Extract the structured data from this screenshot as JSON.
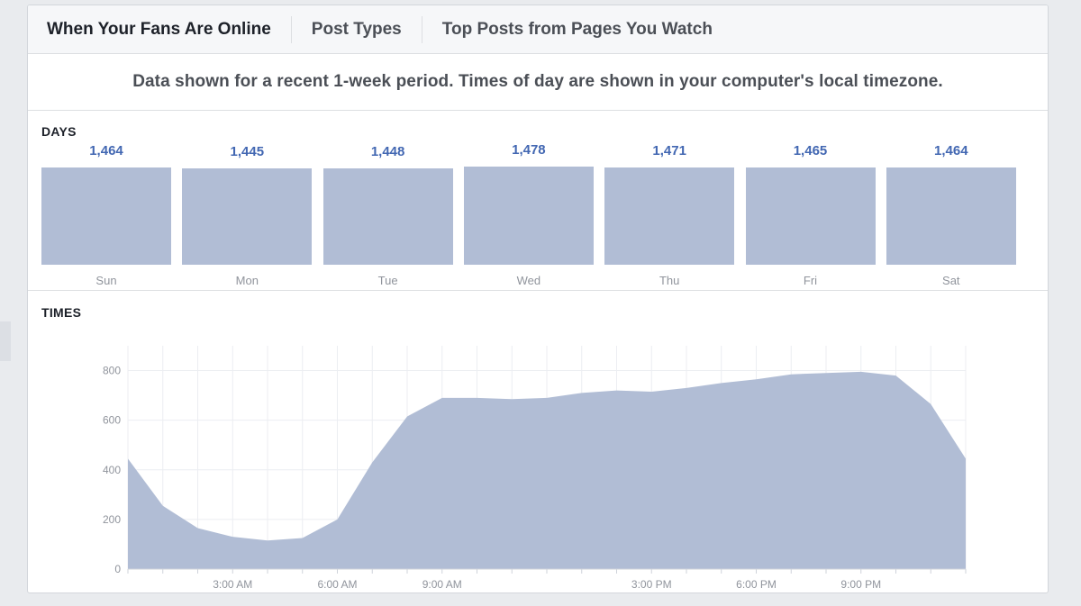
{
  "tabs": [
    {
      "label": "When Your Fans Are Online",
      "active": true
    },
    {
      "label": "Post Types",
      "active": false
    },
    {
      "label": "Top Posts from Pages You Watch",
      "active": false
    }
  ],
  "note": "Data shown for a recent 1-week period. Times of day are shown in your computer's local timezone.",
  "days_section": {
    "label": "DAYS"
  },
  "times_section": {
    "label": "TIMES"
  },
  "colors": {
    "bar": "#b1bdd5",
    "value_text": "#4267b2"
  },
  "chart_data": [
    {
      "type": "bar",
      "title": "DAYS",
      "categories": [
        "Sun",
        "Mon",
        "Tue",
        "Wed",
        "Thu",
        "Fri",
        "Sat"
      ],
      "values": [
        1464,
        1445,
        1448,
        1478,
        1471,
        1465,
        1464
      ],
      "value_labels": [
        "1,464",
        "1,445",
        "1,448",
        "1,478",
        "1,471",
        "1,465",
        "1,464"
      ],
      "grid": false
    },
    {
      "type": "area",
      "title": "TIMES",
      "x": [
        0,
        1,
        2,
        3,
        4,
        5,
        6,
        7,
        8,
        9,
        10,
        11,
        12,
        13,
        14,
        15,
        16,
        17,
        18,
        19,
        20,
        21,
        22,
        23,
        24
      ],
      "values": [
        445,
        255,
        165,
        130,
        115,
        125,
        200,
        430,
        615,
        690,
        690,
        685,
        690,
        710,
        720,
        715,
        730,
        750,
        765,
        785,
        790,
        795,
        780,
        665,
        445
      ],
      "ylim": [
        0,
        900
      ],
      "yticks": [
        0,
        200,
        400,
        600,
        800
      ],
      "xticks": [
        {
          "x": 3,
          "label": "3:00 AM"
        },
        {
          "x": 6,
          "label": "6:00 AM"
        },
        {
          "x": 9,
          "label": "9:00 AM"
        },
        {
          "x": 15,
          "label": "3:00 PM"
        },
        {
          "x": 18,
          "label": "6:00 PM"
        },
        {
          "x": 21,
          "label": "9:00 PM"
        }
      ],
      "grid": true
    }
  ]
}
